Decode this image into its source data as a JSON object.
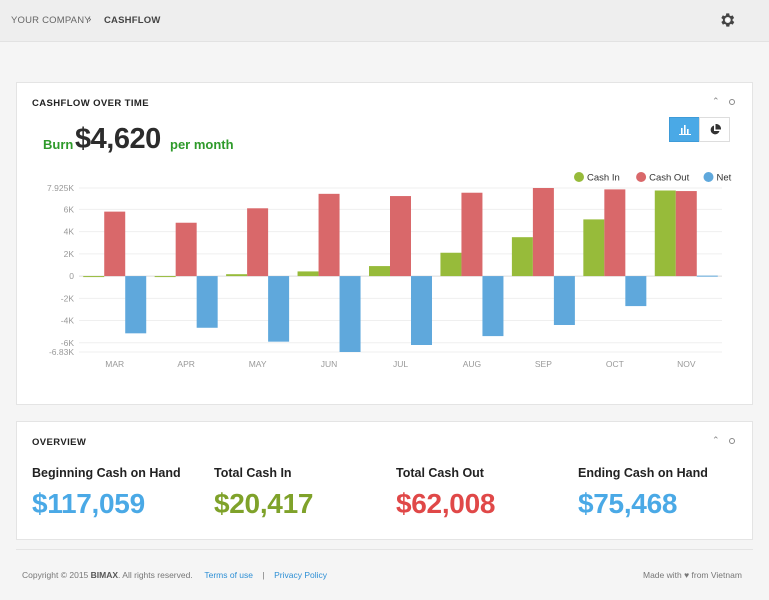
{
  "breadcrumb": {
    "company": "YOUR COMPANY",
    "page": "CASHFLOW"
  },
  "cashflow_panel": {
    "title": "CASHFLOW OVER TIME",
    "burn_label": "Burn",
    "burn_value": "$4,620",
    "burn_unit": "per month"
  },
  "chart_data": {
    "type": "bar",
    "categories": [
      "MAR",
      "APR",
      "MAY",
      "JUN",
      "JUL",
      "AUG",
      "SEP",
      "OCT",
      "NOV"
    ],
    "series": [
      {
        "name": "Cash In",
        "color": "#97bb3a",
        "values": [
          0,
          0,
          170,
          420,
          900,
          2100,
          3500,
          5100,
          7700
        ]
      },
      {
        "name": "Cash Out",
        "color": "#d9686a",
        "values": [
          5800,
          4800,
          6100,
          7400,
          7200,
          7500,
          7925,
          7800,
          7650
        ]
      },
      {
        "name": "Net",
        "color": "#5fa8dc",
        "values": [
          -5150,
          -4650,
          -5900,
          -6830,
          -6200,
          -5400,
          -4400,
          -2700,
          40
        ]
      }
    ],
    "ylim": [
      -6830,
      7925
    ],
    "y_ticks": [
      "7.925K",
      "6K",
      "4K",
      "2K",
      "0",
      "-2K",
      "-4K",
      "-6K",
      "-6.83K"
    ],
    "y_tick_values": [
      7925,
      6000,
      4000,
      2000,
      0,
      -2000,
      -4000,
      -6000,
      -6830
    ],
    "legend_position": "top-right",
    "grid": true
  },
  "overview_panel": {
    "title": "OVERVIEW",
    "stats": [
      {
        "label": "Beginning Cash on Hand",
        "value": "$117,059",
        "color": "#4aa9e6"
      },
      {
        "label": "Total Cash In",
        "value": "$20,417",
        "color": "#7fa22a"
      },
      {
        "label": "Total Cash Out",
        "value": "$62,008",
        "color": "#e04848"
      },
      {
        "label": "Ending Cash on Hand",
        "value": "$75,468",
        "color": "#4aa9e6"
      }
    ]
  },
  "footer": {
    "copyright_prefix": "Copyright © 2015",
    "brand": "BIMAX",
    "copyright_suffix": ". All rights reserved.",
    "terms": "Terms of use",
    "separator": "|",
    "privacy": "Privacy Policy",
    "made_with": "Made with ♥ from Vietnam"
  },
  "icons": {
    "settings": "gear-icon",
    "bar_toggle": "bar-chart-icon",
    "pie_toggle": "pie-chart-icon"
  }
}
